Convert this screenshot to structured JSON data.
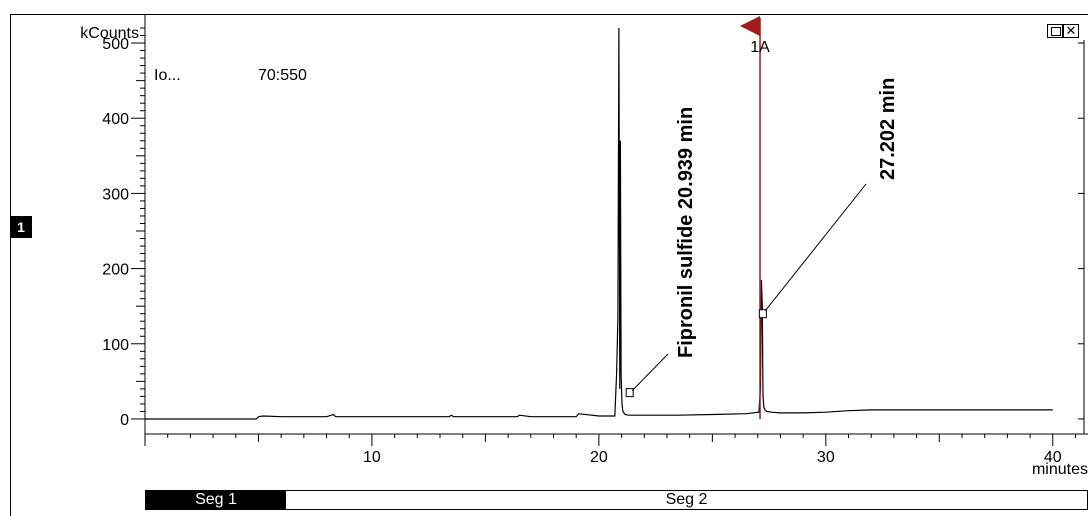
{
  "chart_data": {
    "type": "line",
    "ylabel": "kCounts",
    "xlabel": "minutes",
    "xlim": [
      0,
      40
    ],
    "ylim": [
      -20,
      540
    ],
    "x_ticks": [
      10,
      20,
      30,
      40
    ],
    "y_ticks": [
      0,
      100,
      200,
      300,
      400,
      500
    ],
    "x_tick_labels": [
      "10",
      "20",
      "30",
      "40"
    ],
    "y_tick_labels": [
      "0",
      "100",
      "200",
      "300",
      "400",
      "500"
    ],
    "info_label": "Io...",
    "ion_range": "70:550",
    "marker_label": "1A",
    "marker_x": 27.1,
    "panel_number": "1",
    "series": [
      {
        "color": "#000000",
        "x": [
          0,
          4.9,
          5.0,
          5.2,
          6.0,
          6.5,
          8.0,
          8.3,
          8.4,
          9.0,
          12.0,
          13.4,
          13.5,
          13.6,
          15.0,
          16.4,
          16.5,
          17.0,
          18.5,
          19.0,
          19.1,
          20.0,
          20.7,
          20.78,
          20.84,
          20.88,
          20.92,
          20.95,
          20.98,
          21.02,
          21.06,
          21.15,
          21.3,
          22.0,
          23.5,
          25.0,
          26.5,
          27.05,
          27.12,
          27.16,
          27.2,
          27.23,
          27.27,
          27.32,
          27.4,
          27.6,
          28.0,
          29.0,
          30.0,
          31.0,
          32.0,
          33.0,
          35.0,
          38.0,
          40.0
        ],
        "y": [
          0,
          0,
          3,
          4,
          3,
          3,
          3,
          6,
          3,
          3,
          3,
          3,
          5,
          3,
          3,
          3,
          5,
          3,
          3,
          3,
          7,
          4,
          4,
          60,
          135,
          520,
          40,
          370,
          60,
          20,
          10,
          6,
          5,
          5,
          5,
          6,
          7,
          9,
          40,
          185,
          150,
          30,
          15,
          12,
          10,
          9,
          8,
          8,
          9,
          11,
          12,
          12,
          12,
          12,
          12
        ]
      }
    ],
    "annotations": [
      {
        "text": "Fipronil sulfide 20.939 min",
        "x": 20.939,
        "y": 35
      },
      {
        "text": "27.202 min",
        "x": 27.202,
        "y": 140
      }
    ]
  },
  "segments": [
    "Seg 1",
    "Seg 2"
  ],
  "window_icons": [
    "restore-icon",
    "close-icon"
  ],
  "close_glyph": "✕"
}
